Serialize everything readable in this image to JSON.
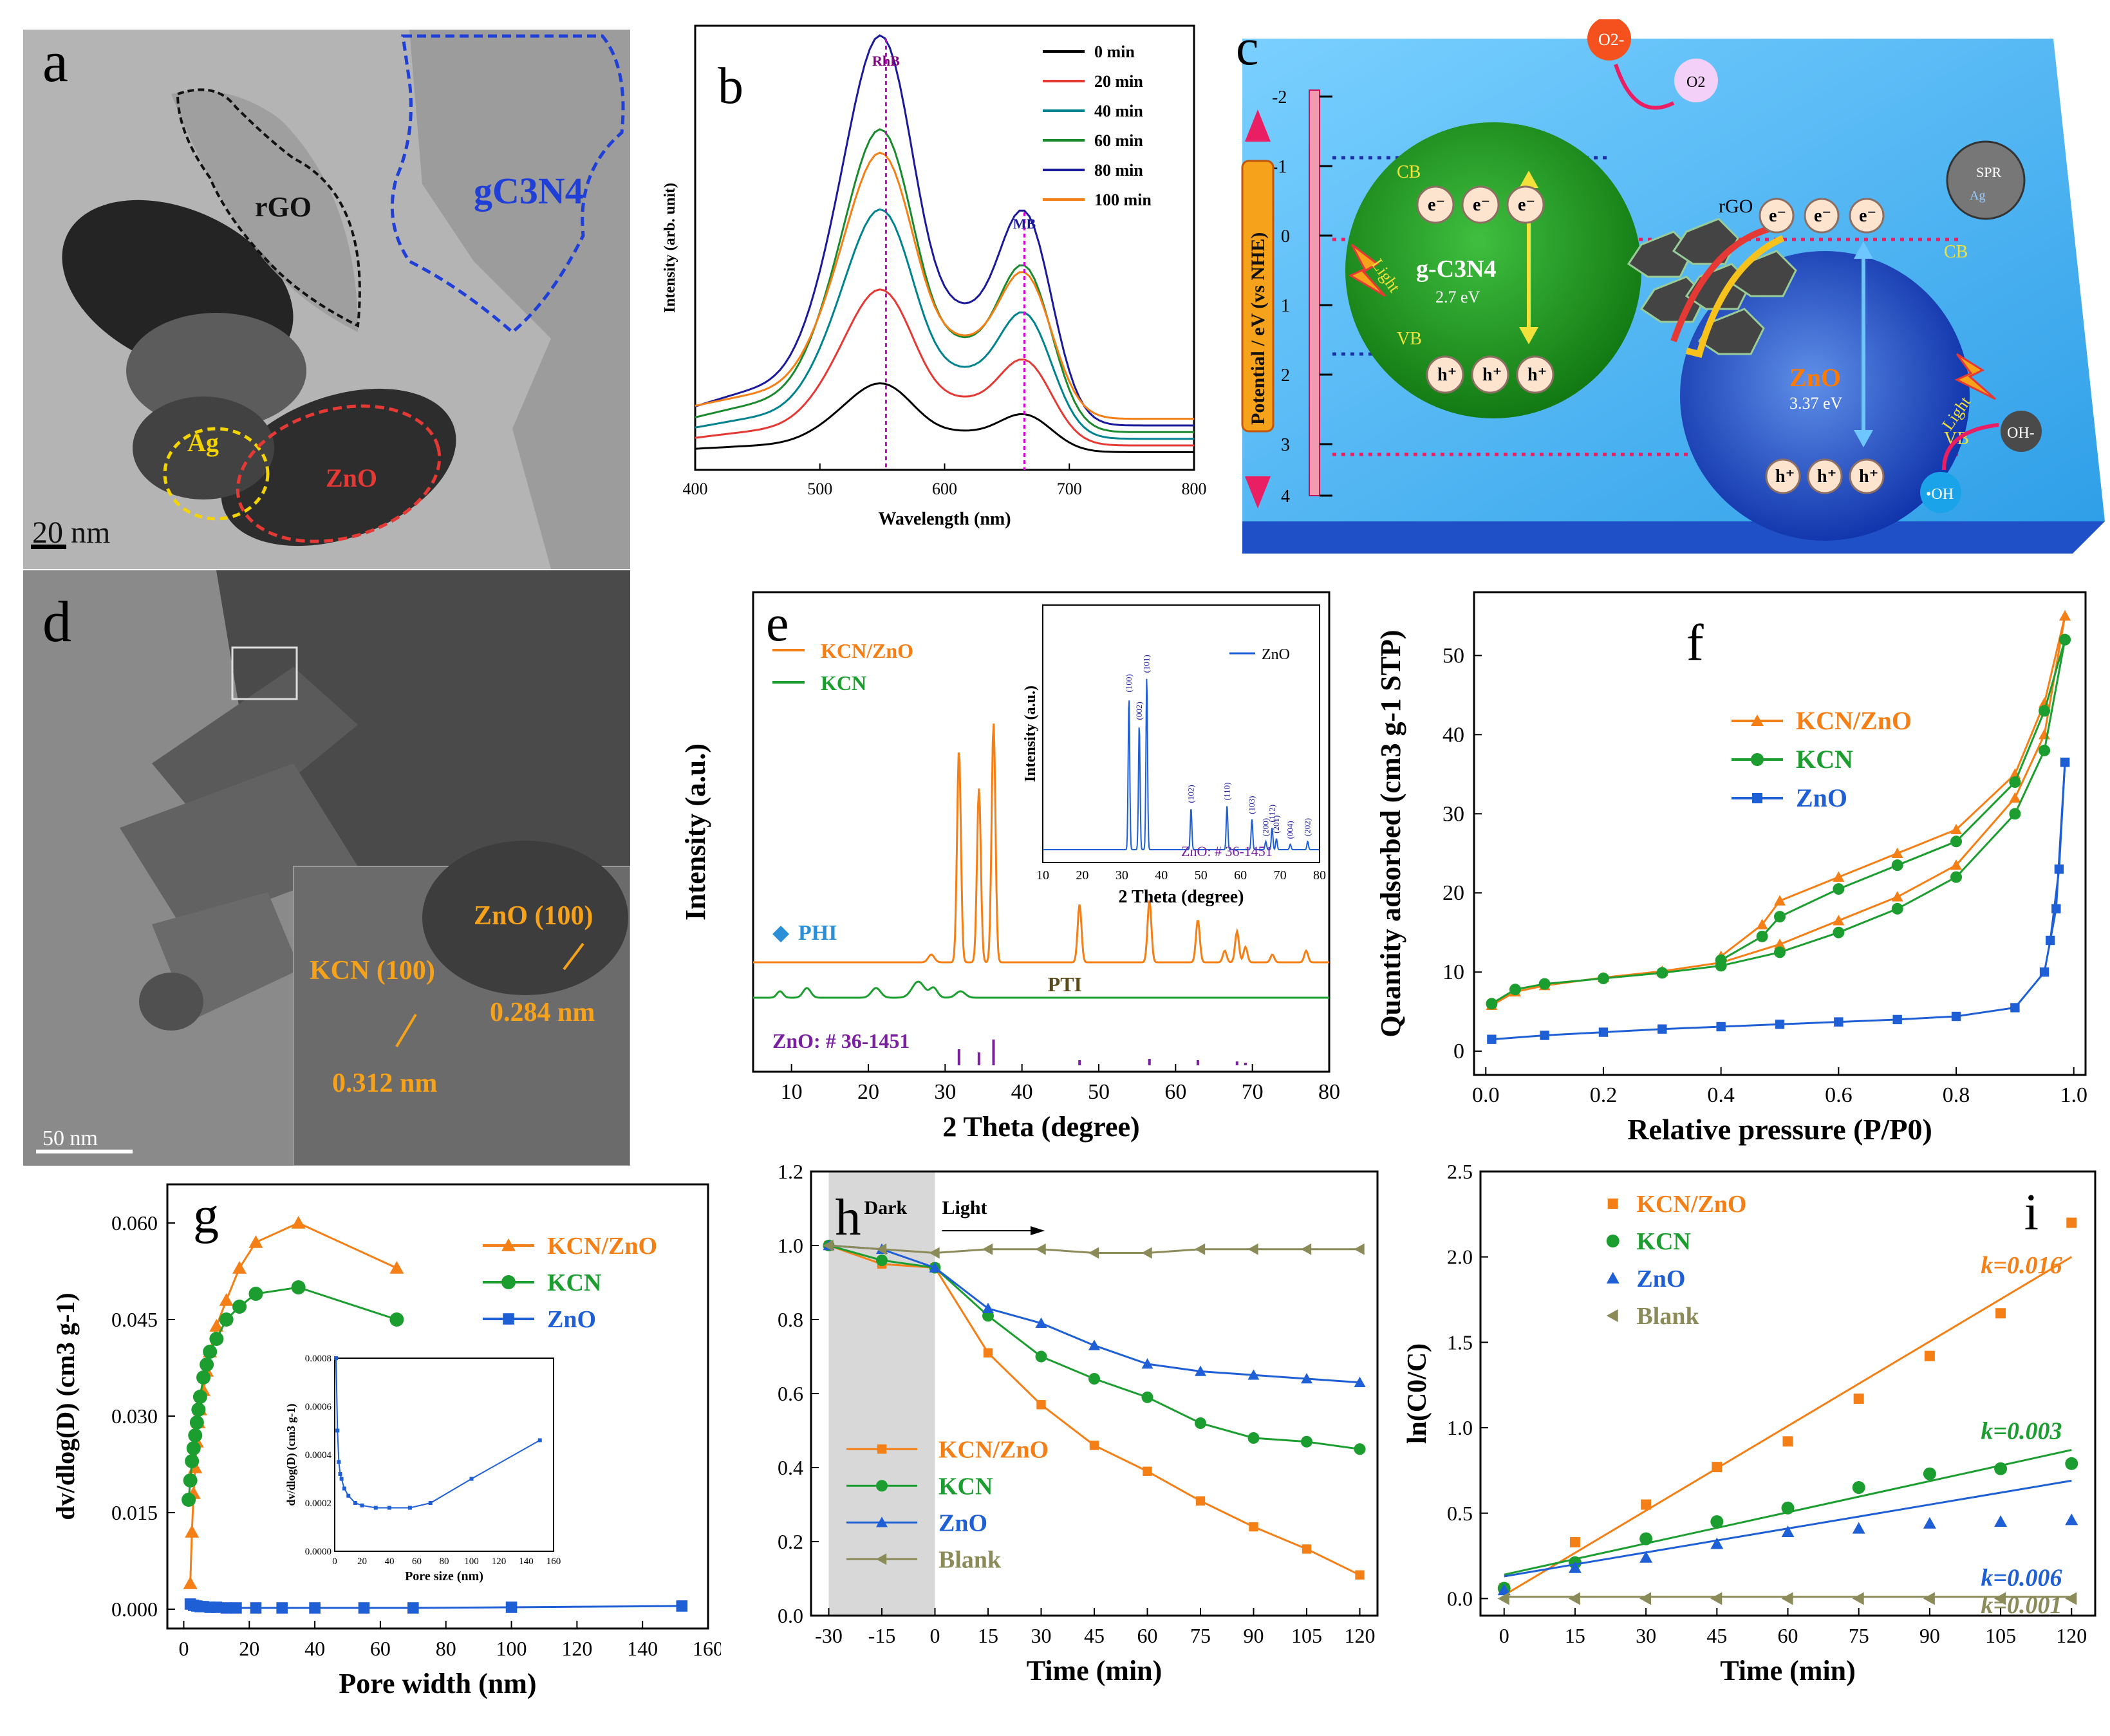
{
  "colors": {
    "kcnzno": "#f57f17",
    "kcn": "#1b9e2f",
    "zno": "#1f5fd6",
    "blank": "#8b8b5a"
  },
  "panel_a": {
    "letter": "a",
    "rgo": "rGO",
    "gcn": "gC3N4",
    "ag": "Ag",
    "zno": "ZnO",
    "scale": "20 nm"
  },
  "panel_d": {
    "letter": "d",
    "kcn100": "KCN (100)",
    "zno100": "ZnO (100)",
    "d1": "0.312 nm",
    "d2": "0.284 nm",
    "scale": "50 nm"
  },
  "panel_c": {
    "letter": "c",
    "axis": "Potential / eV (vs NHE)",
    "ticks": [
      "-2",
      "-1",
      "0",
      "1",
      "2",
      "3",
      "4"
    ],
    "cb": "CB",
    "vb": "VB",
    "gcn": "g-C3N4",
    "gcn_gap": "2.7 eV",
    "zno": "ZnO",
    "zno_gap": "3.37 eV",
    "rgo": "rGO",
    "light": "Light",
    "o2": "O2",
    "o2m": "O2-",
    "oh": "OH-",
    "ohr": "•OH",
    "spr": "SPR",
    "ag": "Ag"
  },
  "chart_data": [
    {
      "id": "b",
      "type": "line",
      "letter": "b",
      "xlabel": "Wavelength (nm)",
      "ylabel": "Intensity (arb. unit)",
      "xlim": [
        400,
        800
      ],
      "xticks": [
        "400",
        "500",
        "600",
        "700",
        "800"
      ],
      "peak1": "RhB",
      "peak2": "MB",
      "series": [
        {
          "name": "0    min",
          "color": "#000000",
          "scale": 0.15
        },
        {
          "name": "20  min",
          "color": "#e53935",
          "scale": 0.34
        },
        {
          "name": "40  min",
          "color": "#00838f",
          "scale": 0.5
        },
        {
          "name": "60  min",
          "color": "#1b8a2f",
          "scale": 0.66
        },
        {
          "name": "80  min",
          "color": "#1a1a9a",
          "scale": 0.85
        },
        {
          "name": "100 min",
          "color": "#f57f17",
          "scale": 0.58
        }
      ]
    },
    {
      "id": "e",
      "type": "line",
      "letter": "e",
      "xlabel": "2 Theta (degree)",
      "ylabel": "Intensity (a.u.)",
      "xlim": [
        5,
        80
      ],
      "xticks": [
        "10",
        "20",
        "30",
        "40",
        "50",
        "60",
        "70",
        "80"
      ],
      "legend": [
        "KCN/ZnO",
        "KCN"
      ],
      "phi": "PHI",
      "pti": "PTI",
      "ref": "ZnO: # 36-1451",
      "inset": {
        "legend": "ZnO",
        "ylabel": "Intensity (a.u.)",
        "xlabel": "2 Theta (degree)",
        "xticks": [
          "10",
          "20",
          "30",
          "40",
          "50",
          "60",
          "70",
          "80"
        ],
        "ref": "ZnO: # 36-1451",
        "hkl": [
          "(100)",
          "(002)",
          "(101)",
          "(102)",
          "(110)",
          "(103)",
          "(200)",
          "(112)",
          "(201)",
          "(004)",
          "(202)"
        ]
      }
    },
    {
      "id": "f",
      "type": "line",
      "letter": "f",
      "xlabel": "Relative pressure (P/P0)",
      "ylabel": "Quantity adsorbed (cm3 g-1 STP)",
      "xlim": [
        0,
        1
      ],
      "ylim": [
        0,
        55
      ],
      "xticks": [
        "0.0",
        "0.2",
        "0.4",
        "0.6",
        "0.8",
        "1.0"
      ],
      "yticks": [
        "0",
        "10",
        "20",
        "30",
        "40",
        "50"
      ],
      "series": [
        {
          "name": "KCN/ZnO",
          "ads": [
            [
              0.01,
              5.8
            ],
            [
              0.05,
              7.5
            ],
            [
              0.1,
              8.3
            ],
            [
              0.2,
              9.3
            ],
            [
              0.3,
              10.1
            ],
            [
              0.4,
              11.2
            ],
            [
              0.5,
              13.5
            ],
            [
              0.6,
              16.5
            ],
            [
              0.7,
              19.5
            ],
            [
              0.8,
              23.5
            ],
            [
              0.9,
              32
            ],
            [
              0.95,
              40
            ],
            [
              0.985,
              55
            ]
          ],
          "des": [
            [
              0.985,
              55
            ],
            [
              0.95,
              44
            ],
            [
              0.9,
              35
            ],
            [
              0.8,
              28
            ],
            [
              0.7,
              25
            ],
            [
              0.6,
              22
            ],
            [
              0.5,
              19
            ],
            [
              0.47,
              16
            ],
            [
              0.4,
              12
            ]
          ]
        },
        {
          "name": "KCN",
          "ads": [
            [
              0.01,
              6
            ],
            [
              0.05,
              7.8
            ],
            [
              0.1,
              8.5
            ],
            [
              0.2,
              9.2
            ],
            [
              0.3,
              9.9
            ],
            [
              0.4,
              10.8
            ],
            [
              0.5,
              12.5
            ],
            [
              0.6,
              15
            ],
            [
              0.7,
              18
            ],
            [
              0.8,
              22
            ],
            [
              0.9,
              30
            ],
            [
              0.95,
              38
            ],
            [
              0.985,
              52
            ]
          ],
          "des": [
            [
              0.985,
              52
            ],
            [
              0.95,
              43
            ],
            [
              0.9,
              34
            ],
            [
              0.8,
              26.5
            ],
            [
              0.7,
              23.5
            ],
            [
              0.6,
              20.5
            ],
            [
              0.5,
              17
            ],
            [
              0.47,
              14.5
            ],
            [
              0.4,
              11.5
            ]
          ]
        },
        {
          "name": "ZnO",
          "ads": [
            [
              0.01,
              1.5
            ],
            [
              0.1,
              2
            ],
            [
              0.2,
              2.4
            ],
            [
              0.3,
              2.8
            ],
            [
              0.4,
              3.1
            ],
            [
              0.5,
              3.4
            ],
            [
              0.6,
              3.7
            ],
            [
              0.7,
              4
            ],
            [
              0.8,
              4.4
            ],
            [
              0.9,
              5.5
            ],
            [
              0.95,
              10
            ],
            [
              0.97,
              18
            ],
            [
              0.985,
              36.5
            ]
          ],
          "des": [
            [
              0.985,
              36.5
            ],
            [
              0.975,
              23
            ],
            [
              0.96,
              14
            ]
          ]
        }
      ]
    },
    {
      "id": "g",
      "type": "line",
      "letter": "g",
      "xlabel": "Pore width (nm)",
      "ylabel": "dv/dlog(D) (cm3 g-1)",
      "xlim": [
        -5,
        160
      ],
      "ylim": [
        -0.003,
        0.066
      ],
      "xticks": [
        "0",
        "20",
        "40",
        "60",
        "80",
        "100",
        "120",
        "140",
        "160"
      ],
      "yticks": [
        "0.000",
        "0.015",
        "0.030",
        "0.045",
        "0.060"
      ],
      "series": [
        {
          "name": "KCN/ZnO",
          "x": [
            2,
            2.5,
            3,
            3.5,
            4,
            4.5,
            5,
            6,
            7,
            8,
            10,
            13,
            17,
            22,
            35,
            65
          ],
          "y": [
            0.004,
            0.012,
            0.018,
            0.022,
            0.026,
            0.029,
            0.031,
            0.034,
            0.037,
            0.04,
            0.044,
            0.048,
            0.053,
            0.057,
            0.06,
            0.053
          ]
        },
        {
          "name": "KCN",
          "x": [
            1.5,
            2,
            2.5,
            3,
            3.5,
            4,
            4.5,
            5,
            6,
            7,
            8,
            10,
            13,
            17,
            22,
            35,
            65
          ],
          "y": [
            0.017,
            0.02,
            0.023,
            0.025,
            0.027,
            0.029,
            0.031,
            0.033,
            0.036,
            0.038,
            0.04,
            0.042,
            0.045,
            0.047,
            0.049,
            0.05,
            0.045
          ]
        },
        {
          "name": "ZnO",
          "x": [
            2,
            3,
            4,
            5,
            6,
            8,
            10,
            13,
            16,
            22,
            30,
            40,
            55,
            70,
            100,
            152
          ],
          "y": [
            0.0008,
            0.0006,
            0.0005,
            0.0004,
            0.0004,
            0.0003,
            0.0003,
            0.0002,
            0.0002,
            0.0002,
            0.0002,
            0.0002,
            0.0002,
            0.0002,
            0.0003,
            0.0005
          ]
        }
      ],
      "inset": {
        "xlabel": "Pore size (nm)",
        "ylabel": "dv/dlog(D) (cm3 g-1)",
        "xticks": [
          "0",
          "20",
          "40",
          "60",
          "80",
          "100",
          "120",
          "140",
          "160"
        ],
        "yticks": [
          "0.0000",
          "0.0002",
          "0.0004",
          "0.0006",
          "0.0008"
        ]
      }
    },
    {
      "id": "h",
      "type": "line",
      "letter": "h",
      "xlabel": "Time (min)",
      "ylabel": "",
      "xlim": [
        -35,
        125
      ],
      "ylim": [
        0,
        1.2
      ],
      "xticks": [
        "-30",
        "-15",
        "0",
        "15",
        "30",
        "45",
        "60",
        "75",
        "90",
        "105",
        "120"
      ],
      "yticks": [
        "0.0",
        "0.2",
        "0.4",
        "0.6",
        "0.8",
        "1.0",
        "1.2"
      ],
      "dark": "Dark",
      "light": "Light",
      "x": [
        -30,
        -15,
        0,
        15,
        30,
        45,
        60,
        75,
        90,
        105,
        120
      ],
      "series": [
        {
          "name": "KCN/ZnO",
          "y": [
            1,
            0.95,
            0.94,
            0.71,
            0.57,
            0.46,
            0.39,
            0.31,
            0.24,
            0.18,
            0.11
          ]
        },
        {
          "name": "KCN",
          "y": [
            1,
            0.96,
            0.94,
            0.81,
            0.7,
            0.64,
            0.59,
            0.52,
            0.48,
            0.47,
            0.45
          ]
        },
        {
          "name": "ZnO",
          "y": [
            1,
            0.99,
            0.94,
            0.83,
            0.79,
            0.73,
            0.68,
            0.66,
            0.65,
            0.64,
            0.63
          ]
        },
        {
          "name": "Blank",
          "y": [
            1,
            0.99,
            0.98,
            0.99,
            0.99,
            0.98,
            0.98,
            0.99,
            0.99,
            0.99,
            0.99
          ]
        }
      ]
    },
    {
      "id": "i",
      "type": "scatter",
      "letter": "i",
      "xlabel": "Time (min)",
      "ylabel": "ln(C0/C)",
      "xlim": [
        -5,
        125
      ],
      "ylim": [
        -0.1,
        2.5
      ],
      "xticks": [
        "0",
        "15",
        "30",
        "45",
        "60",
        "75",
        "90",
        "105",
        "120"
      ],
      "yticks": [
        "0.0",
        "0.5",
        "1.0",
        "1.5",
        "2.0",
        "2.5"
      ],
      "x": [
        0,
        15,
        30,
        45,
        60,
        75,
        90,
        105,
        120
      ],
      "series": [
        {
          "name": "KCN/ZnO",
          "y": [
            0.06,
            0.33,
            0.55,
            0.77,
            0.92,
            1.17,
            1.42,
            1.67,
            2.2
          ],
          "fit": [
            0.02,
            2.0
          ],
          "k": "k=0.016"
        },
        {
          "name": "KCN",
          "y": [
            0.06,
            0.21,
            0.35,
            0.45,
            0.53,
            0.65,
            0.73,
            0.76,
            0.79
          ],
          "fit": [
            0.14,
            0.87
          ],
          "k": "k=0.003"
        },
        {
          "name": "ZnO",
          "y": [
            0.05,
            0.18,
            0.24,
            0.32,
            0.39,
            0.41,
            0.44,
            0.45,
            0.46
          ],
          "fit": [
            0.13,
            0.69
          ],
          "k": "k=0.006"
        },
        {
          "name": "Blank",
          "y": [
            0,
            0,
            0,
            0,
            0,
            0,
            0,
            0,
            0
          ],
          "fit": [
            0.01,
            0.01
          ],
          "k": "k=0.001"
        }
      ]
    }
  ]
}
